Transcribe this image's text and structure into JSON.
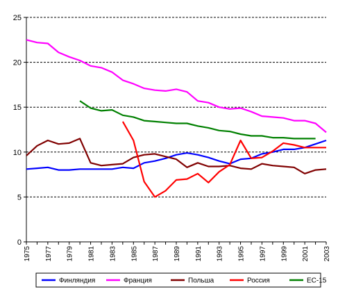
{
  "chart_data": {
    "type": "line",
    "title": "",
    "xlabel": "",
    "ylabel": "",
    "ylim": [
      0,
      25
    ],
    "y_ticks": [
      "0",
      "5",
      "10",
      "15",
      "20",
      "25"
    ],
    "x": [
      1975,
      1976,
      1977,
      1978,
      1979,
      1980,
      1981,
      1982,
      1983,
      1984,
      1985,
      1986,
      1987,
      1988,
      1989,
      1990,
      1991,
      1992,
      1993,
      1994,
      1995,
      1996,
      1997,
      1998,
      1999,
      2000,
      2001,
      2002,
      2003
    ],
    "x_tick_labels": [
      "1975",
      "1977",
      "1979",
      "1981",
      "1983",
      "1985",
      "1987",
      "1989",
      "1991",
      "1993",
      "1995",
      "1997",
      "1999",
      "2001",
      "2003"
    ],
    "grid": "horizontal dashed",
    "legend_position": "bottom",
    "series": [
      {
        "name": "Финляндия",
        "color": "#0000ff",
        "values": [
          8.1,
          8.2,
          8.3,
          8.0,
          8.0,
          8.1,
          8.1,
          8.1,
          8.1,
          8.3,
          8.2,
          8.8,
          9.0,
          9.3,
          9.7,
          9.9,
          9.7,
          9.4,
          9.0,
          8.7,
          9.2,
          9.3,
          9.8,
          10.0,
          10.3,
          10.3,
          10.5,
          10.9,
          11.3
        ]
      },
      {
        "name": "Франция",
        "color": "#ff00ff",
        "values": [
          22.5,
          22.2,
          22.1,
          21.1,
          20.6,
          20.2,
          19.6,
          19.4,
          18.9,
          18.0,
          17.6,
          17.1,
          16.9,
          16.8,
          17.0,
          16.7,
          15.7,
          15.5,
          15.0,
          14.8,
          14.9,
          14.5,
          14.0,
          13.9,
          13.8,
          13.5,
          13.5,
          13.2,
          12.2
        ]
      },
      {
        "name": "Польша",
        "color": "#800000",
        "values": [
          9.6,
          10.7,
          11.3,
          10.9,
          11.0,
          11.5,
          8.8,
          8.5,
          8.6,
          8.7,
          9.4,
          9.7,
          9.8,
          9.5,
          9.2,
          8.3,
          8.8,
          8.4,
          8.4,
          8.5,
          8.2,
          8.1,
          8.7,
          8.5,
          8.4,
          8.3,
          7.6,
          8.0,
          8.1
        ]
      },
      {
        "name": "Россия",
        "color": "#ff0000",
        "values": [
          null,
          null,
          null,
          null,
          null,
          null,
          null,
          null,
          null,
          13.4,
          11.3,
          6.7,
          5.0,
          5.7,
          6.9,
          7.0,
          7.6,
          6.6,
          7.8,
          8.6,
          11.3,
          9.3,
          9.4,
          10.1,
          11.0,
          10.8,
          10.5,
          10.5,
          10.5
        ]
      },
      {
        "name": "ЕС-15",
        "color": "#008000",
        "values": [
          null,
          null,
          null,
          null,
          null,
          15.7,
          14.9,
          14.6,
          14.7,
          14.1,
          13.9,
          13.5,
          13.4,
          13.3,
          13.2,
          13.2,
          12.9,
          12.7,
          12.4,
          12.3,
          12.0,
          11.8,
          11.8,
          11.6,
          11.6,
          11.5,
          11.5,
          11.5,
          null
        ]
      }
    ]
  }
}
